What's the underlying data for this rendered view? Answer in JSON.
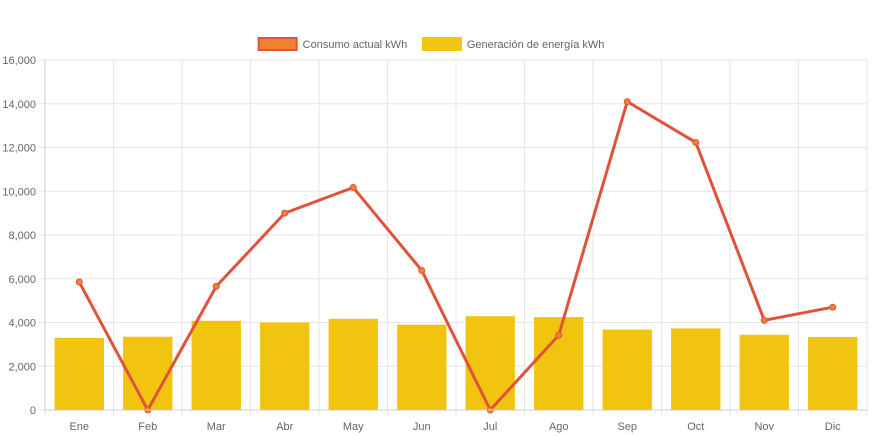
{
  "chart_data": {
    "type": "bar",
    "categories": [
      "Ene",
      "Feb",
      "Mar",
      "Abr",
      "May",
      "Jun",
      "Jul",
      "Ago",
      "Sep",
      "Oct",
      "Nov",
      "Dic"
    ],
    "series": [
      {
        "name": "Consumo actual kWh",
        "type": "line",
        "color": "#e0533a",
        "point_color": "#f0812e",
        "values": [
          5850,
          0,
          5650,
          9000,
          10170,
          6380,
          0,
          3420,
          14100,
          12230,
          4100,
          4700
        ]
      },
      {
        "name": "Generación de energía kWh",
        "type": "bar",
        "color": "#f1c40f",
        "values": [
          3300,
          3350,
          4080,
          4000,
          4170,
          3900,
          4290,
          4250,
          3680,
          3730,
          3440,
          3340
        ]
      }
    ],
    "yticks": [
      "0",
      "2,000",
      "4,000",
      "6,000",
      "8,000",
      "10,000",
      "12,000",
      "14,000",
      "16,000"
    ],
    "ylim": [
      0,
      16000
    ],
    "grid": true,
    "legend_position": "top"
  }
}
